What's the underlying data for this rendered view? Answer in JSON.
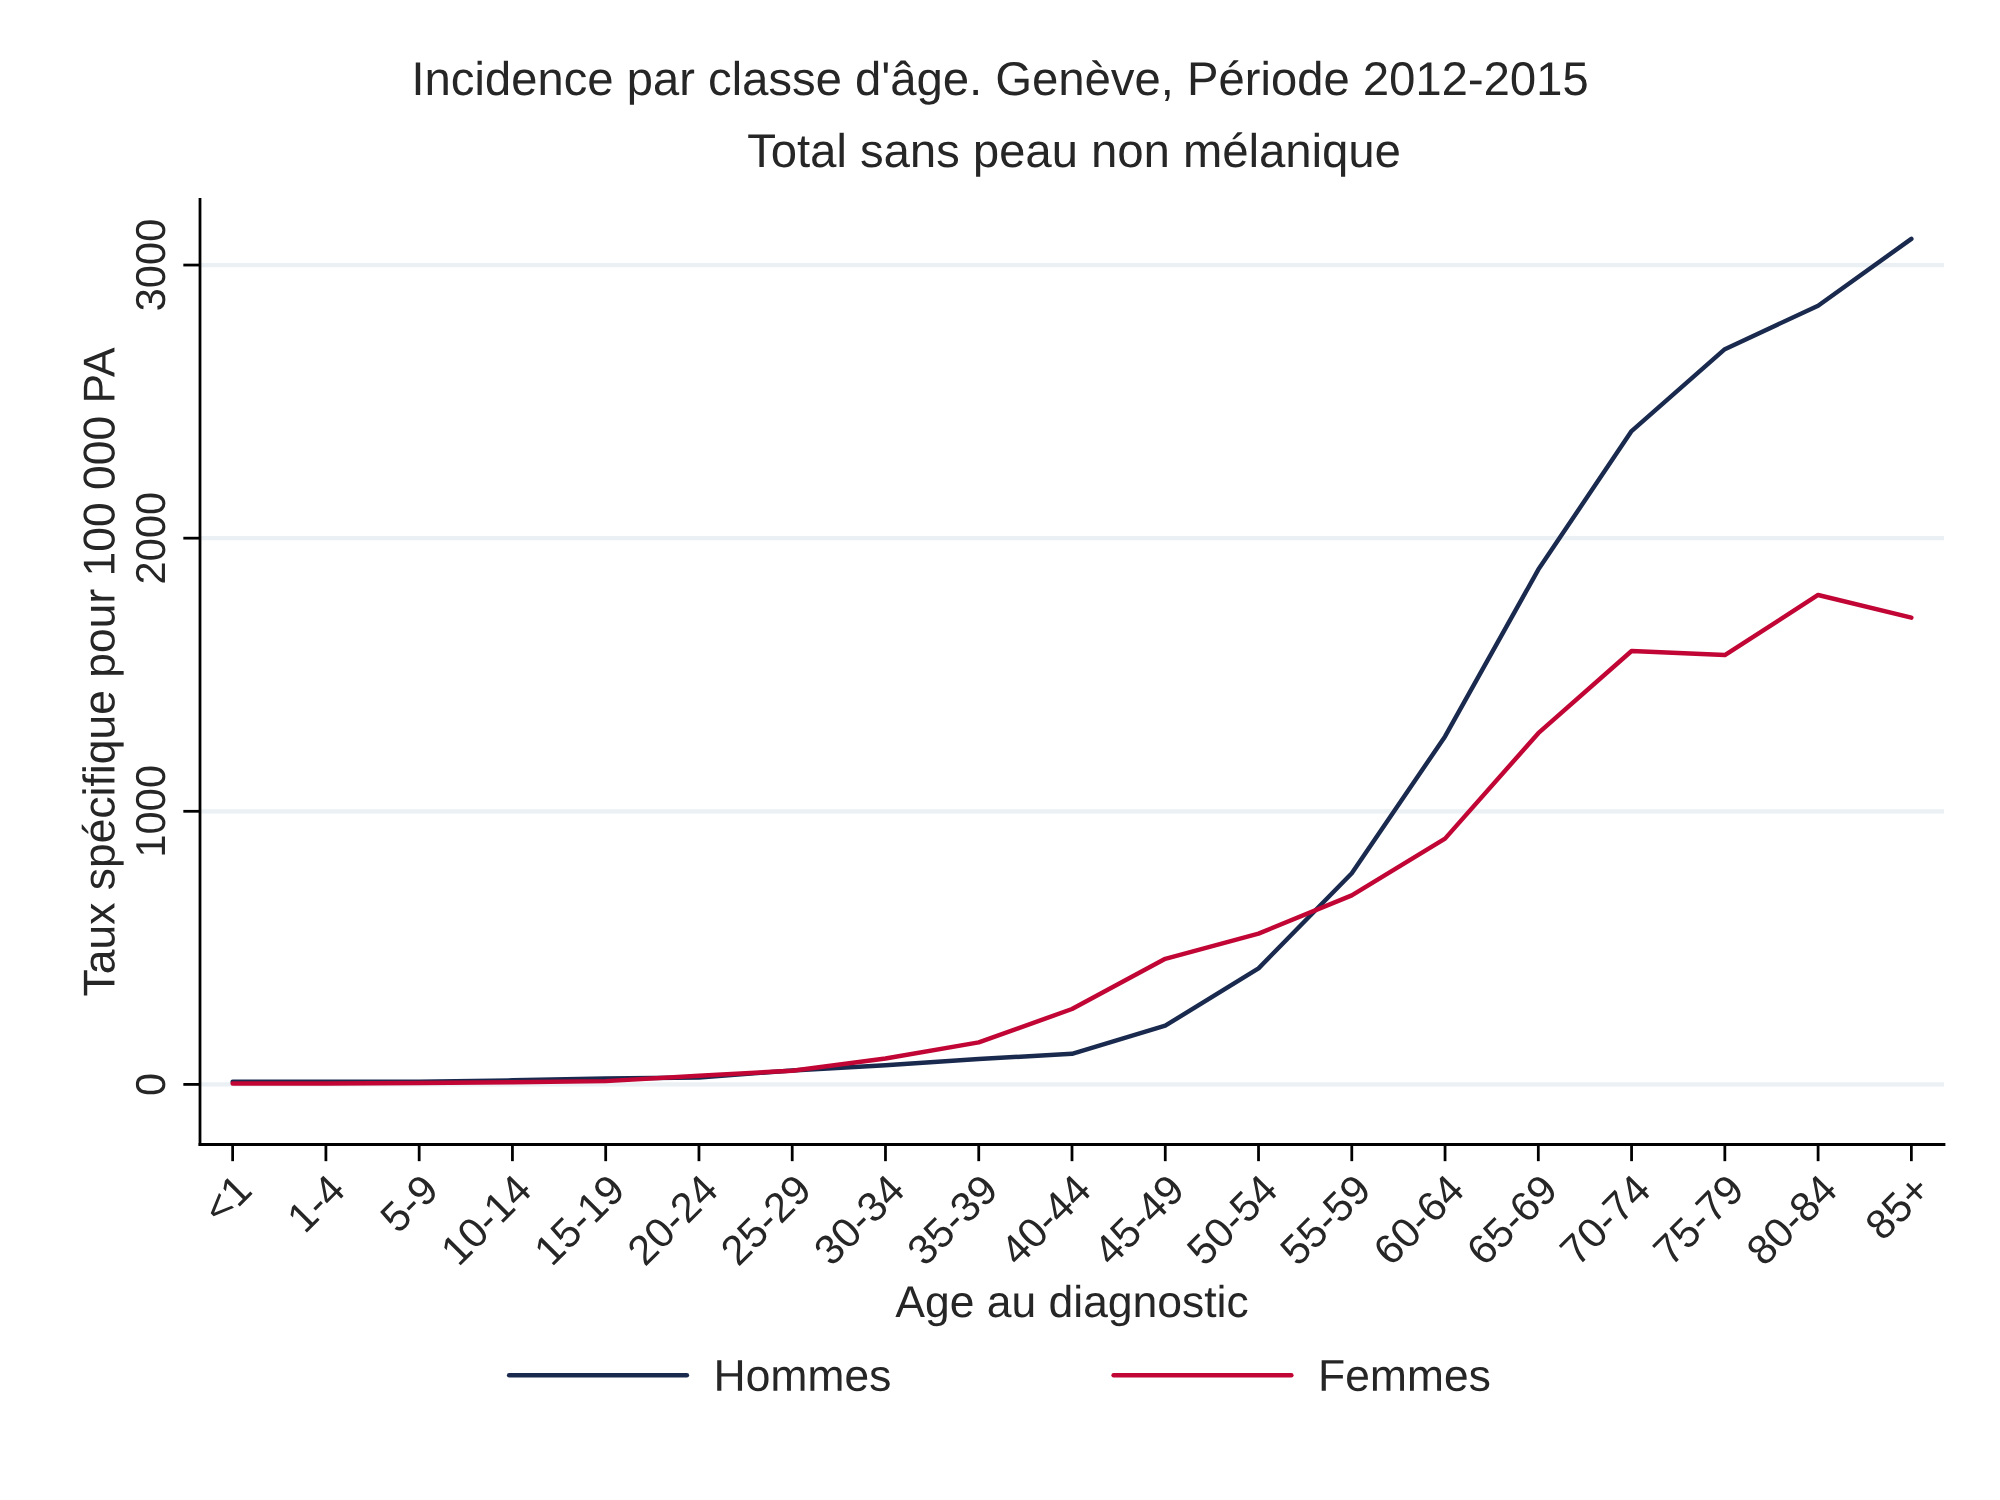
{
  "chart_data": {
    "type": "line",
    "title": "Incidence par classe d'âge. Genève, Période 2012-2015",
    "subtitle": "Total sans peau non mélanique",
    "xlabel": "Age au diagnostic",
    "ylabel": "Taux spécifique pour 100 000 PA",
    "categories": [
      "<1",
      "1-4",
      "5-9",
      "10-14",
      "15-19",
      "20-24",
      "25-29",
      "30-34",
      "35-39",
      "40-44",
      "45-49",
      "50-54",
      "55-59",
      "60-64",
      "65-69",
      "70-74",
      "75-79",
      "80-84",
      "85+"
    ],
    "series": [
      {
        "name": "Hommes",
        "color": "#1a2a4f",
        "values": [
          10,
          10,
          10,
          15,
          22,
          25,
          51,
          70,
          93,
          112,
          215,
          425,
          773,
          1274,
          1885,
          2392,
          2692,
          2851,
          3096
        ]
      },
      {
        "name": "Femmes",
        "color": "#c10534",
        "values": [
          3,
          3,
          5,
          8,
          12,
          32,
          50,
          95,
          154,
          276,
          460,
          552,
          692,
          900,
          1286,
          1587,
          1572,
          1792,
          1709
        ]
      }
    ],
    "ylim": [
      -220,
      3240
    ],
    "yticks": [
      0,
      1000,
      2000,
      3000
    ],
    "grid": "y",
    "legend": "bottom",
    "marker": "none",
    "line_style": "solid"
  }
}
